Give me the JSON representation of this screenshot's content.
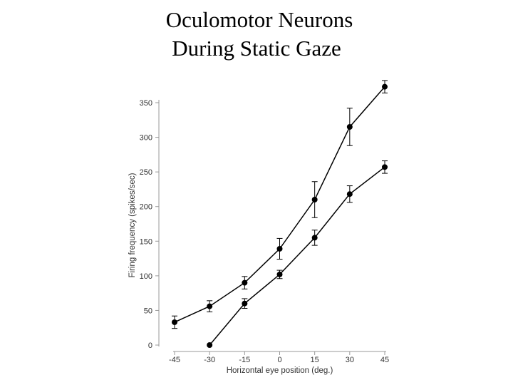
{
  "chart_data": {
    "type": "line",
    "title_lines": [
      "Oculomotor Neurons",
      "During Static Gaze"
    ],
    "xlabel": "Horizontal eye position (deg.)",
    "ylabel": "Firing frequency (spikes/sec)",
    "x": [
      -45,
      -30,
      -15,
      0,
      15,
      30,
      45
    ],
    "x_tick_labels": [
      "-45",
      "-30",
      "-15",
      "0",
      "15",
      "30",
      "45"
    ],
    "y_ticks": [
      0,
      50,
      100,
      150,
      200,
      250,
      300,
      350
    ],
    "xlim": [
      -45,
      45
    ],
    "ylim": [
      0,
      350
    ],
    "grid": false,
    "series": [
      {
        "name": "upper",
        "x": [
          -45,
          -30,
          -15,
          0,
          15,
          30,
          45
        ],
        "values": [
          33,
          56,
          90,
          139,
          210,
          315,
          373
        ],
        "error": [
          9,
          8,
          9,
          15,
          26,
          27,
          9
        ]
      },
      {
        "name": "lower",
        "x": [
          -30,
          -15,
          0,
          15,
          30,
          45
        ],
        "values": [
          0,
          60,
          102,
          155,
          218,
          257
        ],
        "error": [
          0,
          7,
          6,
          11,
          12,
          9
        ]
      }
    ]
  }
}
